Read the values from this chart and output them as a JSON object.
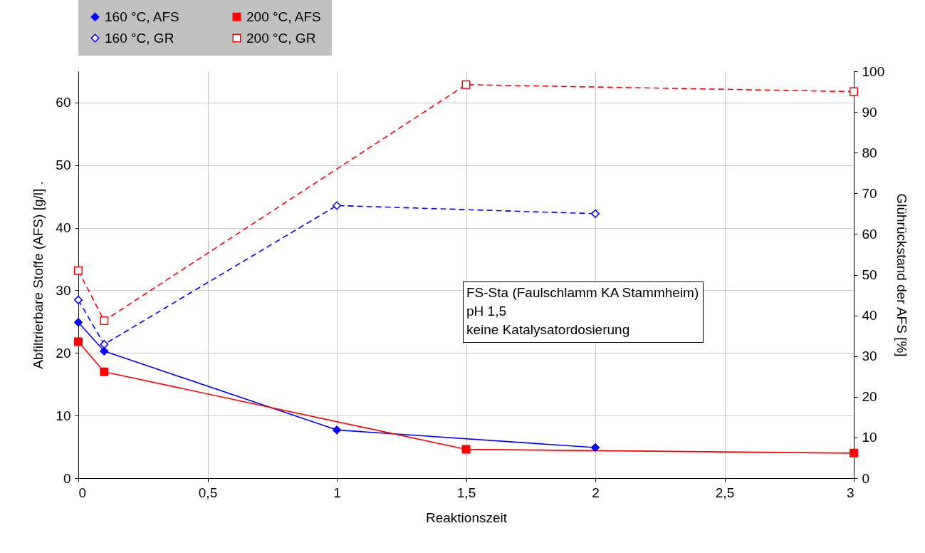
{
  "chart_data": {
    "type": "line",
    "xlabel": "Reaktionszeit",
    "ylabel": "Abfiltrierbare Stoffe (AFS) [g/l]   .",
    "y2label": "Glührückstand der AFS [%]",
    "xlim": [
      0,
      3
    ],
    "xticks": [
      0,
      {
        "value": 0.5,
        "label": "0,5"
      },
      1,
      {
        "value": 1.5,
        "label": "1,5"
      },
      2,
      {
        "value": 2.5,
        "label": "2,5"
      },
      3
    ],
    "ylim": [
      0,
      65
    ],
    "yticks": [
      0,
      10,
      20,
      30,
      40,
      50,
      60
    ],
    "y2lim": [
      0,
      100
    ],
    "y2ticks": [
      0,
      10,
      20,
      30,
      40,
      50,
      60,
      70,
      80,
      90,
      100
    ],
    "grid": true,
    "legend": "top",
    "series": [
      {
        "name": "160 °C, AFS",
        "color": "#0000ff",
        "marker": "diamond",
        "line_style": "solid",
        "x": [
          0,
          0.1,
          1,
          2
        ],
        "values": [
          24.9,
          20.3,
          7.7,
          4.9
        ]
      },
      {
        "name": "200 °C, AFS",
        "color": "#ff0000",
        "marker": "square",
        "line_style": "solid",
        "x": [
          0,
          0.1,
          1.5,
          3
        ],
        "values": [
          21.8,
          17.0,
          4.6,
          4.0
        ]
      },
      {
        "name": "160 °C, GR",
        "color": "#0000ff",
        "marker": "diamond",
        "line_style": "dashed",
        "axis": "y2",
        "x": [
          0,
          0.1,
          1,
          2
        ],
        "values": [
          43.8,
          32.9,
          67.0,
          65.0
        ]
      },
      {
        "name": "200 °C, GR",
        "color": "#ff0000",
        "marker": "square",
        "line_style": "dashed",
        "axis": "y2",
        "x": [
          0,
          0.1,
          1.5,
          3
        ],
        "values": [
          51.0,
          38.7,
          96.7,
          95.0
        ]
      }
    ],
    "annotations": [
      "FS-Sta (Faulschlamm KA Stammheim)",
      "pH 1,5",
      "keine Katalysatordosierung"
    ]
  }
}
